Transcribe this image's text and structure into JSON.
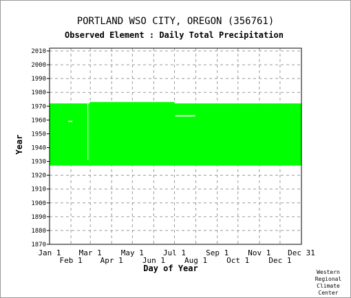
{
  "page": {
    "title": "PORTLAND WSO CITY, OREGON   (356761)",
    "subtitle": "Observed Element : Daily Total Precipitation",
    "credit": [
      "Western",
      "Regional",
      "Climate",
      "Center"
    ]
  },
  "colors": {
    "fill": "#00ff00",
    "background": "#ffffff",
    "grid": "#999999",
    "axis": "#000000"
  },
  "chart_data": {
    "type": "heatmap",
    "xlabel": "Day of Year",
    "ylabel": "Year",
    "xlim": [
      1,
      366
    ],
    "ylim": [
      1870,
      2012
    ],
    "grid": true,
    "yticks": [
      1870,
      1880,
      1890,
      1900,
      1910,
      1920,
      1930,
      1940,
      1950,
      1960,
      1970,
      1980,
      1990,
      2000,
      2010
    ],
    "xticks_top": [
      {
        "label": "Jan 1",
        "day": 1
      },
      {
        "label": "Mar 1",
        "day": 60
      },
      {
        "label": "May 1",
        "day": 121
      },
      {
        "label": "Jul 1",
        "day": 182
      },
      {
        "label": "Sep 1",
        "day": 244
      },
      {
        "label": "Nov 1",
        "day": 305
      },
      {
        "label": "Dec 31",
        "day": 366
      }
    ],
    "xticks_bottom": [
      {
        "label": "Feb 1",
        "day": 32
      },
      {
        "label": "Apr 1",
        "day": 91
      },
      {
        "label": "Jun 1",
        "day": 152
      },
      {
        "label": "Aug 1",
        "day": 213
      },
      {
        "label": "Oct 1",
        "day": 274
      },
      {
        "label": "Dec 1",
        "day": 335
      }
    ],
    "coverage": [
      {
        "day_start": 1,
        "day_end": 59,
        "year_start": 1927,
        "year_end": 1972
      },
      {
        "day_start": 59,
        "day_end": 182,
        "year_start": 1927,
        "year_end": 1973
      },
      {
        "day_start": 182,
        "day_end": 366,
        "year_start": 1927,
        "year_end": 1972
      }
    ],
    "gaps": [
      {
        "day_start": 28,
        "day_end": 34,
        "year": 1959
      },
      {
        "day_start": 183,
        "day_end": 212,
        "year": 1963
      },
      {
        "day_start": 56,
        "day_end": 57,
        "year_start": 1931,
        "year_end": 1972
      }
    ]
  }
}
